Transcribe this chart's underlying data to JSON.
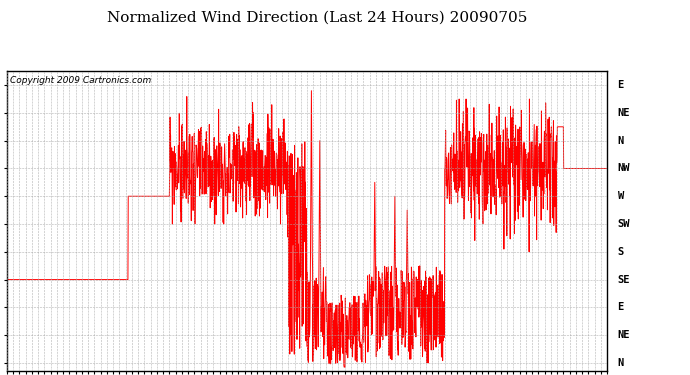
{
  "title": "Normalized Wind Direction (Last 24 Hours) 20090705",
  "copyright": "Copyright 2009 Cartronics.com",
  "line_color": "#ff0000",
  "background_color": "#ffffff",
  "grid_color": "#aaaaaa",
  "y_tick_labels_right": [
    "E",
    "NE",
    "N",
    "NW",
    "W",
    "SW",
    "S",
    "SE",
    "E",
    "NE",
    "N"
  ],
  "y_tick_values": [
    10,
    9,
    8,
    7,
    6,
    5,
    4,
    3,
    2,
    1,
    0
  ],
  "ylim": [
    -0.3,
    10.5
  ],
  "xlim": [
    0,
    24
  ],
  "title_fontsize": 11,
  "copyright_fontsize": 6.5,
  "tick_fontsize": 5.5,
  "ylabel_fontsize": 7.5
}
